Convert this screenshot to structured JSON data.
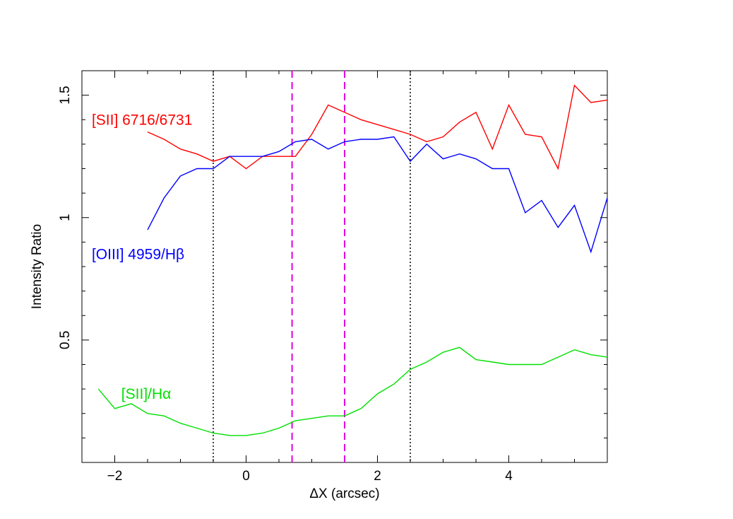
{
  "chart_data": {
    "type": "line",
    "title": "",
    "xlabel": "ΔX (arcsec)",
    "ylabel": "Intensity Ratio",
    "xlim": [
      -2.5,
      5.5
    ],
    "ylim": [
      0.0,
      1.6
    ],
    "x_ticks": [
      -2,
      0,
      2,
      4
    ],
    "x_tick_labels": [
      "−2",
      "0",
      "2",
      "4"
    ],
    "y_ticks": [
      0.5,
      1.0,
      1.5
    ],
    "y_tick_labels": [
      "0.5",
      "1",
      "1.5"
    ],
    "y_minor_step": 0.1,
    "x_minor_step": 0.5,
    "grid": false,
    "series": [
      {
        "name": "[SII] 6716/6731",
        "color": "#ff0000",
        "x": [
          -1.5,
          -1.25,
          -1.0,
          -0.75,
          -0.5,
          -0.25,
          0.0,
          0.25,
          0.5,
          0.75,
          1.0,
          1.25,
          1.5,
          1.75,
          2.0,
          2.25,
          2.5,
          2.75,
          3.0,
          3.25,
          3.5,
          3.75,
          4.0,
          4.25,
          4.5,
          4.75,
          5.0,
          5.25,
          5.5
        ],
        "y": [
          1.35,
          1.32,
          1.28,
          1.26,
          1.23,
          1.25,
          1.2,
          1.25,
          1.25,
          1.25,
          1.34,
          1.46,
          1.43,
          1.4,
          1.38,
          1.36,
          1.34,
          1.31,
          1.33,
          1.39,
          1.43,
          1.28,
          1.46,
          1.34,
          1.33,
          1.2,
          1.54,
          1.47,
          1.48
        ]
      },
      {
        "name": "[OIII] 4959/Hβ",
        "color": "#0000ff",
        "x": [
          -1.5,
          -1.25,
          -1.0,
          -0.75,
          -0.5,
          -0.25,
          0.0,
          0.25,
          0.5,
          0.75,
          1.0,
          1.25,
          1.5,
          1.75,
          2.0,
          2.25,
          2.5,
          2.75,
          3.0,
          3.25,
          3.5,
          3.75,
          4.0,
          4.25,
          4.5,
          4.75,
          5.0,
          5.25,
          5.5
        ],
        "y": [
          0.95,
          1.08,
          1.17,
          1.2,
          1.2,
          1.25,
          1.25,
          1.25,
          1.27,
          1.31,
          1.32,
          1.28,
          1.31,
          1.32,
          1.32,
          1.33,
          1.23,
          1.3,
          1.24,
          1.26,
          1.24,
          1.2,
          1.2,
          1.02,
          1.07,
          0.96,
          1.05,
          0.86,
          1.08
        ]
      },
      {
        "name": "[SII]/Hα",
        "color": "#00e000",
        "x": [
          -2.25,
          -2.0,
          -1.75,
          -1.5,
          -1.25,
          -1.0,
          -0.75,
          -0.5,
          -0.25,
          0.0,
          0.25,
          0.5,
          0.75,
          1.0,
          1.25,
          1.5,
          1.75,
          2.0,
          2.25,
          2.5,
          2.75,
          3.0,
          3.25,
          3.5,
          3.75,
          4.0,
          4.25,
          4.5,
          4.75,
          5.0,
          5.25,
          5.5
        ],
        "y": [
          0.3,
          0.22,
          0.24,
          0.2,
          0.19,
          0.16,
          0.14,
          0.12,
          0.11,
          0.11,
          0.12,
          0.14,
          0.17,
          0.18,
          0.19,
          0.19,
          0.22,
          0.28,
          0.32,
          0.38,
          0.41,
          0.45,
          0.47,
          0.42,
          0.41,
          0.4,
          0.4,
          0.4,
          0.43,
          0.46,
          0.44,
          0.43
        ]
      }
    ],
    "vertical_lines": [
      {
        "x": -0.5,
        "style": "dotted",
        "color": "#000000"
      },
      {
        "x": 2.5,
        "style": "dotted",
        "color": "#000000"
      },
      {
        "x": 0.7,
        "style": "dashed",
        "color": "#e000e0"
      },
      {
        "x": 1.5,
        "style": "dashed",
        "color": "#e000e0"
      }
    ],
    "annotations": [
      {
        "text": "[SII] 6716/6731",
        "color": "#ff0000",
        "x": -2.35,
        "y": 1.4
      },
      {
        "text": "[OIII] 4959/Hβ",
        "color": "#0000ff",
        "x": -2.35,
        "y": 0.85
      },
      {
        "text": "[SII]/Hα",
        "color": "#00e000",
        "x": -1.9,
        "y": 0.28
      }
    ]
  }
}
